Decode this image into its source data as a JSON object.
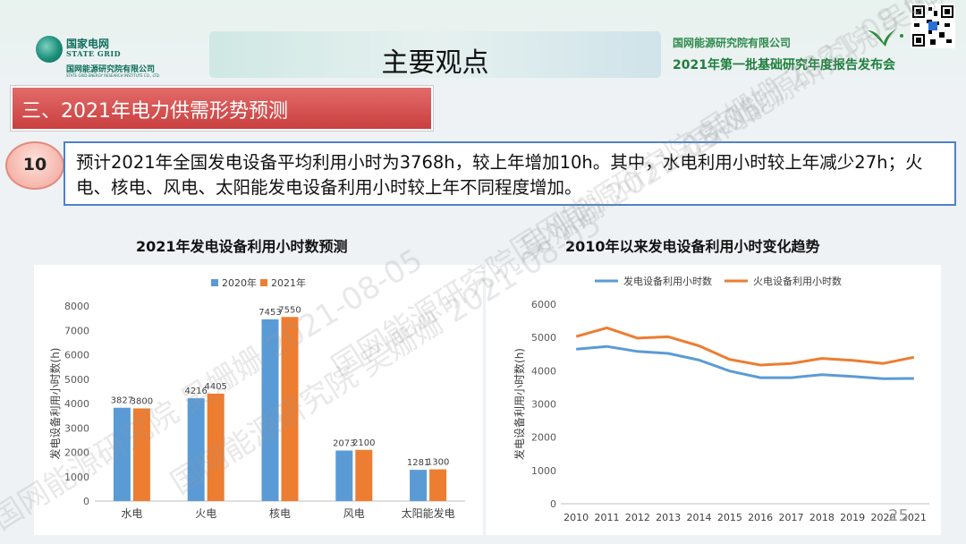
{
  "header": {
    "logo_cn": "国家电网",
    "logo_en": "STATE GRID",
    "logo_sub": "国网能源研究院有限公司",
    "logo_subsub": "STATE GRID ENERGY RESEARCH INSTITUTE CO., LTD.",
    "title": "主要观点",
    "org": "国网能源研究院有限公司",
    "event": "2021年第一批基础研究年度报告发布会"
  },
  "section": {
    "label": "三、2021年电力供需形势预测"
  },
  "point": {
    "number": "10",
    "text": "预计2021年全国发电设备平均利用小时为3768h，较上年增加10h。其中，水电利用小时较上年减少27h；火电、核电、风电、太阳能发电设备利用小时较上年不同程度增加。"
  },
  "watermark": {
    "text": "国网能源研究院 吴姗姗 2021-08-05"
  },
  "page_number": "25",
  "colors": {
    "blue": "#5b9bd5",
    "orange": "#ed7d31",
    "red_header": "#c9403f",
    "title_green": "#1d7f3b"
  },
  "chart_data": [
    {
      "type": "bar",
      "title": "2021年发电设备利用小时数预测",
      "ylabel": "发电设备利用小时数(h)",
      "ylim": [
        0,
        8000
      ],
      "yticks": [
        0,
        1000,
        2000,
        3000,
        4000,
        5000,
        6000,
        7000,
        8000
      ],
      "legend_position": "top",
      "categories": [
        "水电",
        "火电",
        "核电",
        "风电",
        "太阳能发电"
      ],
      "series": [
        {
          "name": "2020年",
          "color": "#5b9bd5",
          "values": [
            3827,
            4216,
            7453,
            2073,
            1281
          ]
        },
        {
          "name": "2021年",
          "color": "#ed7d31",
          "values": [
            3800,
            4405,
            7550,
            2100,
            1300
          ]
        }
      ]
    },
    {
      "type": "line",
      "title": "2010年以来发电设备利用小时变化趋势",
      "ylabel": "发电设备利用小时数(h)",
      "ylim": [
        0,
        6000
      ],
      "yticks": [
        0,
        1000,
        2000,
        3000,
        4000,
        5000,
        6000
      ],
      "legend_position": "top",
      "x": [
        "2010",
        "2011",
        "2012",
        "2013",
        "2014",
        "2015",
        "2016",
        "2017",
        "2018",
        "2019",
        "2020",
        "2021"
      ],
      "series": [
        {
          "name": "发电设备利用小时数",
          "color": "#5b9bd5",
          "values": [
            4650,
            4730,
            4580,
            4520,
            4320,
            3990,
            3790,
            3790,
            3880,
            3830,
            3760,
            3768
          ]
        },
        {
          "name": "火电设备利用小时数",
          "color": "#ed7d31",
          "values": [
            5030,
            5290,
            4980,
            5020,
            4750,
            4340,
            4170,
            4220,
            4370,
            4310,
            4220,
            4405
          ]
        }
      ]
    }
  ]
}
